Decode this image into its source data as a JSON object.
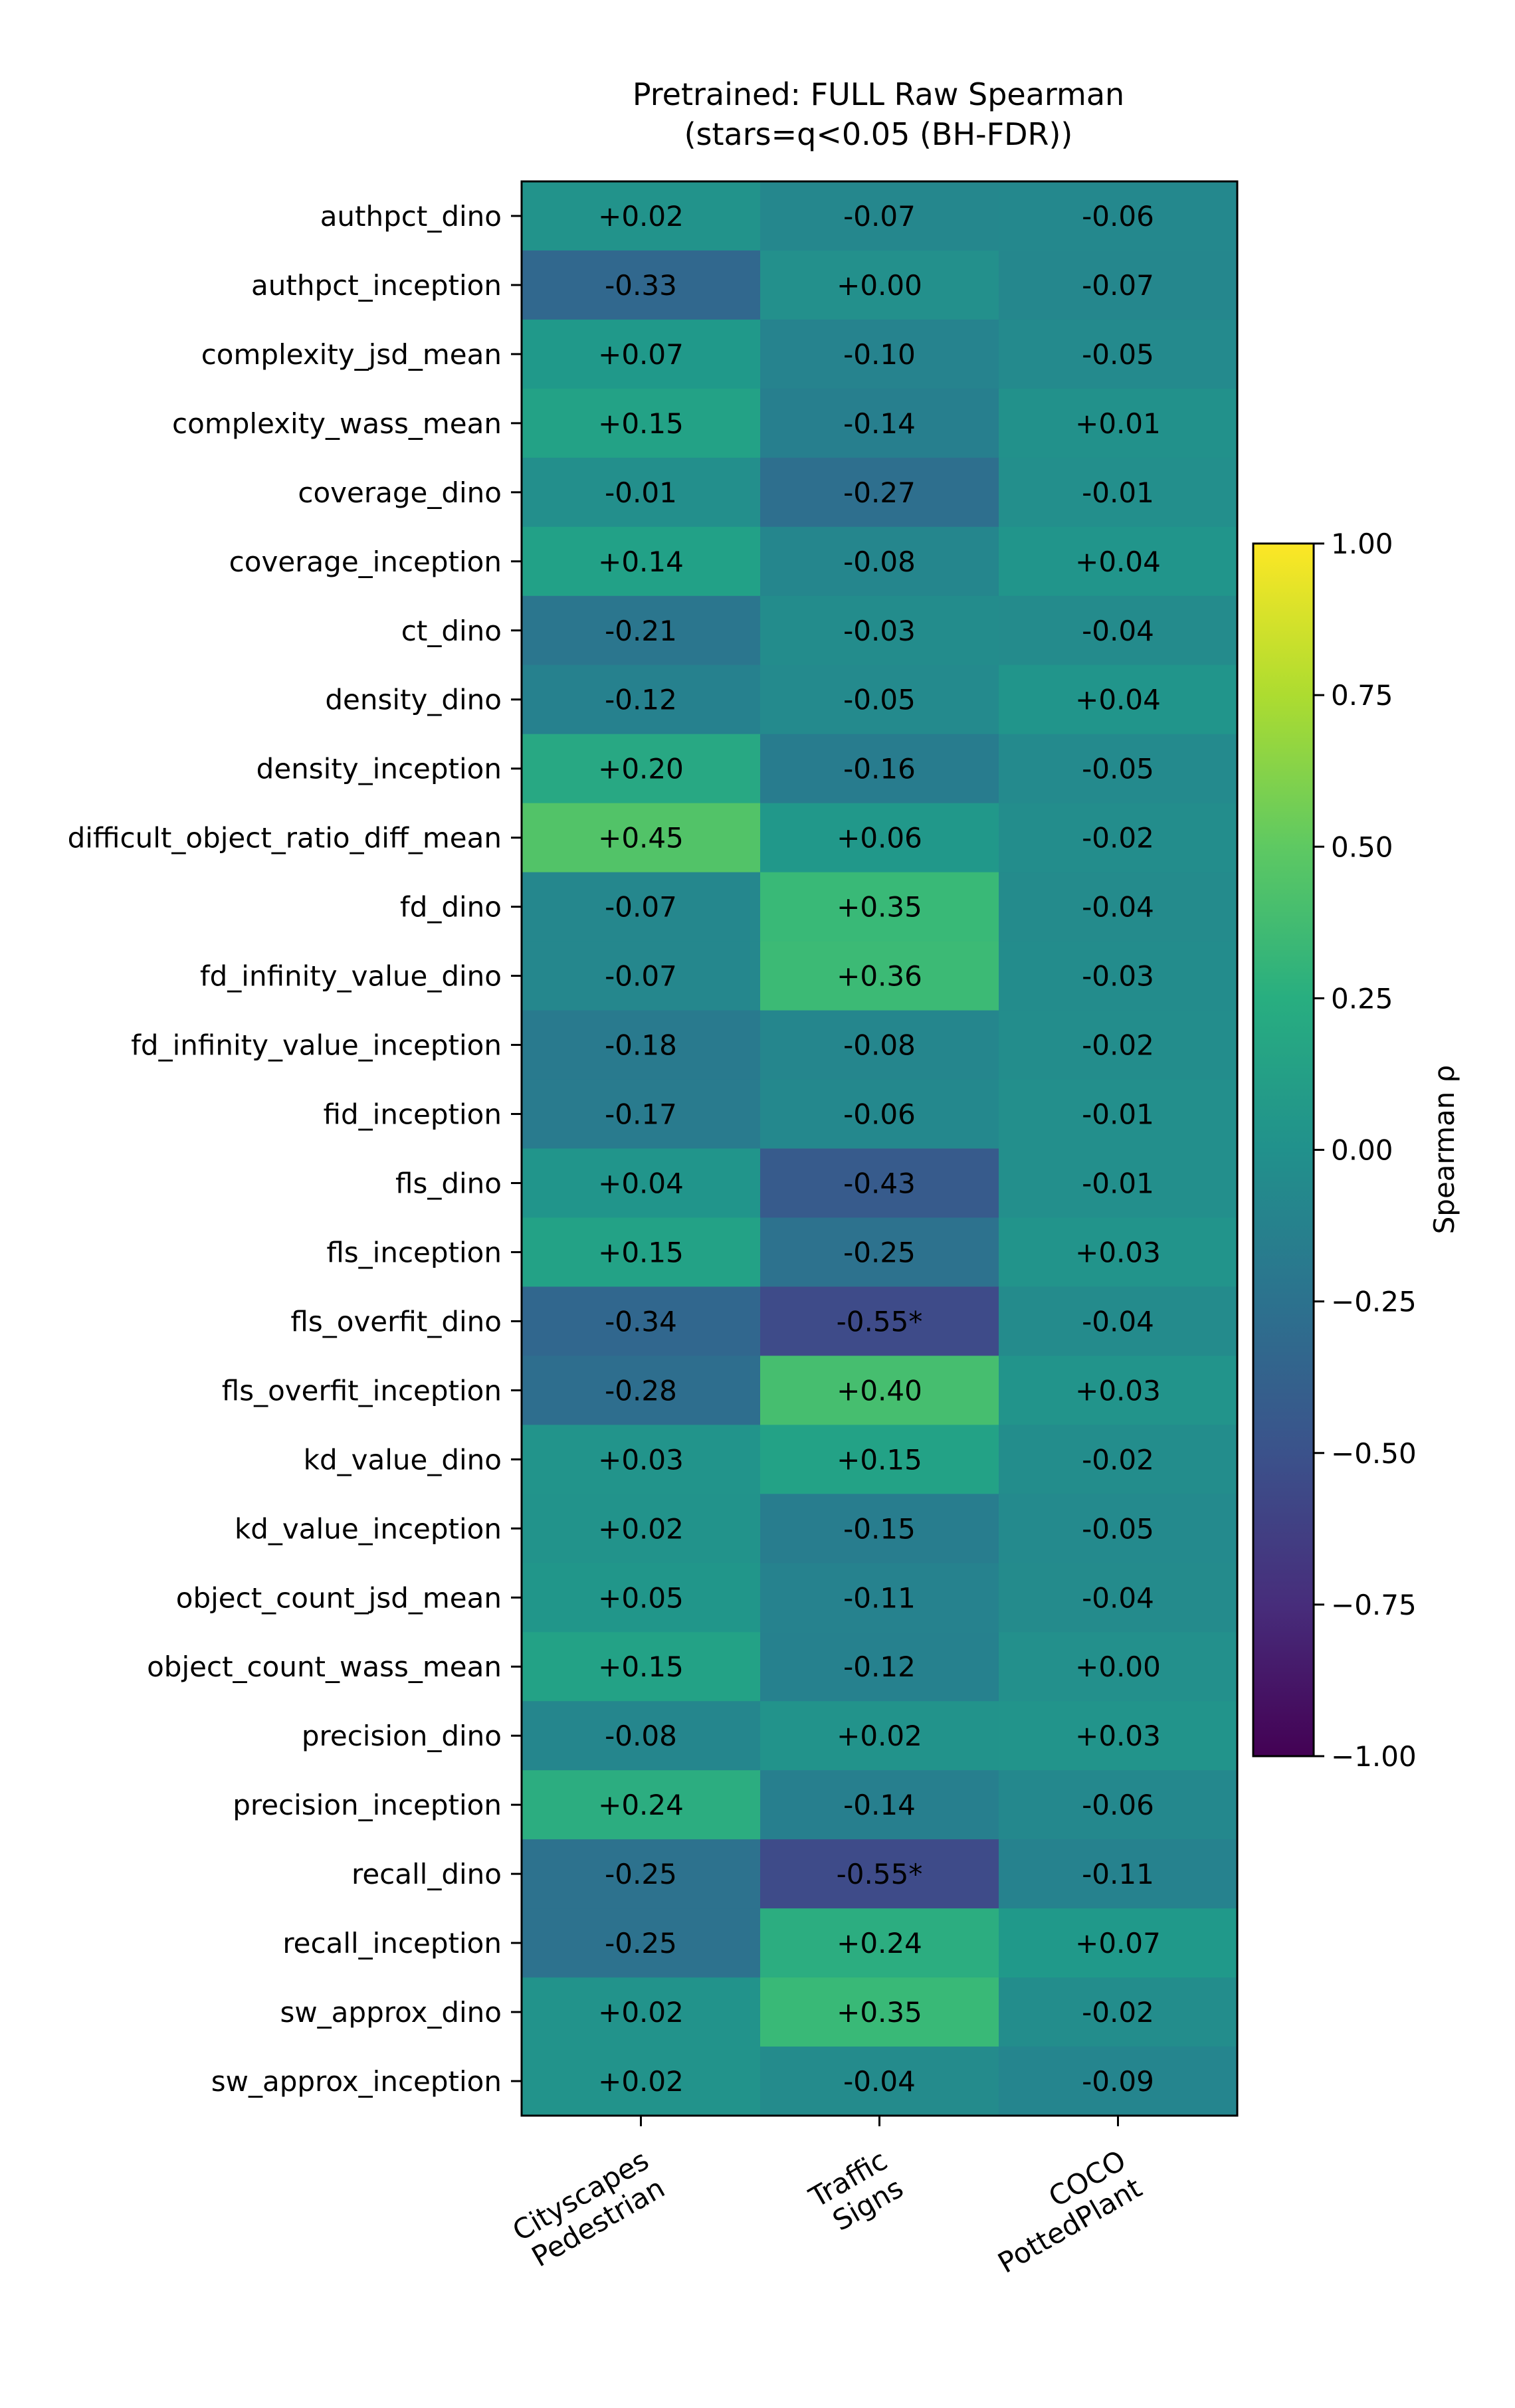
{
  "chart_data": {
    "type": "heatmap",
    "title": "Pretrained: FULL Raw Spearman",
    "subtitle": "(stars=q<0.05 (BH-FDR))",
    "columns": [
      {
        "lines": [
          "Cityscapes",
          "Pedestrian"
        ]
      },
      {
        "lines": [
          "Traffic",
          "Signs"
        ]
      },
      {
        "lines": [
          "COCO",
          "PottedPlant"
        ]
      }
    ],
    "rows": [
      {
        "label": "authpct_dino",
        "values": [
          0.02,
          -0.07,
          -0.06
        ],
        "text": [
          "+0.02",
          "-0.07",
          "-0.06"
        ]
      },
      {
        "label": "authpct_inception",
        "values": [
          -0.33,
          0.0,
          -0.07
        ],
        "text": [
          "-0.33",
          "+0.00",
          "-0.07"
        ]
      },
      {
        "label": "complexity_jsd_mean",
        "values": [
          0.07,
          -0.1,
          -0.05
        ],
        "text": [
          "+0.07",
          "-0.10",
          "-0.05"
        ]
      },
      {
        "label": "complexity_wass_mean",
        "values": [
          0.15,
          -0.14,
          0.01
        ],
        "text": [
          "+0.15",
          "-0.14",
          "+0.01"
        ]
      },
      {
        "label": "coverage_dino",
        "values": [
          -0.01,
          -0.27,
          -0.01
        ],
        "text": [
          "-0.01",
          "-0.27",
          "-0.01"
        ]
      },
      {
        "label": "coverage_inception",
        "values": [
          0.14,
          -0.08,
          0.04
        ],
        "text": [
          "+0.14",
          "-0.08",
          "+0.04"
        ]
      },
      {
        "label": "ct_dino",
        "values": [
          -0.21,
          -0.03,
          -0.04
        ],
        "text": [
          "-0.21",
          "-0.03",
          "-0.04"
        ]
      },
      {
        "label": "density_dino",
        "values": [
          -0.12,
          -0.05,
          0.04
        ],
        "text": [
          "-0.12",
          "-0.05",
          "+0.04"
        ]
      },
      {
        "label": "density_inception",
        "values": [
          0.2,
          -0.16,
          -0.05
        ],
        "text": [
          "+0.20",
          "-0.16",
          "-0.05"
        ]
      },
      {
        "label": "difficult_object_ratio_diff_mean",
        "values": [
          0.45,
          0.06,
          -0.02
        ],
        "text": [
          "+0.45",
          "+0.06",
          "-0.02"
        ]
      },
      {
        "label": "fd_dino",
        "values": [
          -0.07,
          0.35,
          -0.04
        ],
        "text": [
          "-0.07",
          "+0.35",
          "-0.04"
        ]
      },
      {
        "label": "fd_infinity_value_dino",
        "values": [
          -0.07,
          0.36,
          -0.03
        ],
        "text": [
          "-0.07",
          "+0.36",
          "-0.03"
        ]
      },
      {
        "label": "fd_infinity_value_inception",
        "values": [
          -0.18,
          -0.08,
          -0.02
        ],
        "text": [
          "-0.18",
          "-0.08",
          "-0.02"
        ]
      },
      {
        "label": "fid_inception",
        "values": [
          -0.17,
          -0.06,
          -0.01
        ],
        "text": [
          "-0.17",
          "-0.06",
          "-0.01"
        ]
      },
      {
        "label": "fls_dino",
        "values": [
          0.04,
          -0.43,
          -0.01
        ],
        "text": [
          "+0.04",
          "-0.43",
          "-0.01"
        ]
      },
      {
        "label": "fls_inception",
        "values": [
          0.15,
          -0.25,
          0.03
        ],
        "text": [
          "+0.15",
          "-0.25",
          "+0.03"
        ]
      },
      {
        "label": "fls_overfit_dino",
        "values": [
          -0.34,
          -0.55,
          -0.04
        ],
        "text": [
          "-0.34",
          "-0.55*",
          "-0.04"
        ]
      },
      {
        "label": "fls_overfit_inception",
        "values": [
          -0.28,
          0.4,
          0.03
        ],
        "text": [
          "-0.28",
          "+0.40",
          "+0.03"
        ]
      },
      {
        "label": "kd_value_dino",
        "values": [
          0.03,
          0.15,
          -0.02
        ],
        "text": [
          "+0.03",
          "+0.15",
          "-0.02"
        ]
      },
      {
        "label": "kd_value_inception",
        "values": [
          0.02,
          -0.15,
          -0.05
        ],
        "text": [
          "+0.02",
          "-0.15",
          "-0.05"
        ]
      },
      {
        "label": "object_count_jsd_mean",
        "values": [
          0.05,
          -0.11,
          -0.04
        ],
        "text": [
          "+0.05",
          "-0.11",
          "-0.04"
        ]
      },
      {
        "label": "object_count_wass_mean",
        "values": [
          0.15,
          -0.12,
          0.0
        ],
        "text": [
          "+0.15",
          "-0.12",
          "+0.00"
        ]
      },
      {
        "label": "precision_dino",
        "values": [
          -0.08,
          0.02,
          0.03
        ],
        "text": [
          "-0.08",
          "+0.02",
          "+0.03"
        ]
      },
      {
        "label": "precision_inception",
        "values": [
          0.24,
          -0.14,
          -0.06
        ],
        "text": [
          "+0.24",
          "-0.14",
          "-0.06"
        ]
      },
      {
        "label": "recall_dino",
        "values": [
          -0.25,
          -0.55,
          -0.11
        ],
        "text": [
          "-0.25",
          "-0.55*",
          "-0.11"
        ]
      },
      {
        "label": "recall_inception",
        "values": [
          -0.25,
          0.24,
          0.07
        ],
        "text": [
          "-0.25",
          "+0.24",
          "+0.07"
        ]
      },
      {
        "label": "sw_approx_dino",
        "values": [
          0.02,
          0.35,
          -0.02
        ],
        "text": [
          "+0.02",
          "+0.35",
          "-0.02"
        ]
      },
      {
        "label": "sw_approx_inception",
        "values": [
          0.02,
          -0.04,
          -0.09
        ],
        "text": [
          "+0.02",
          "-0.04",
          "-0.09"
        ]
      }
    ],
    "colormap": "viridis",
    "vmin": -1.0,
    "vmax": 1.0,
    "colorbar": {
      "label": "Spearman ρ",
      "ticks": [
        1.0,
        0.75,
        0.5,
        0.25,
        0.0,
        -0.25,
        -0.5,
        -0.75,
        -1.0
      ],
      "tick_labels": [
        "1.00",
        "0.75",
        "0.50",
        "0.25",
        "0.00",
        "−0.25",
        "−0.50",
        "−0.75",
        "−1.00"
      ]
    }
  }
}
